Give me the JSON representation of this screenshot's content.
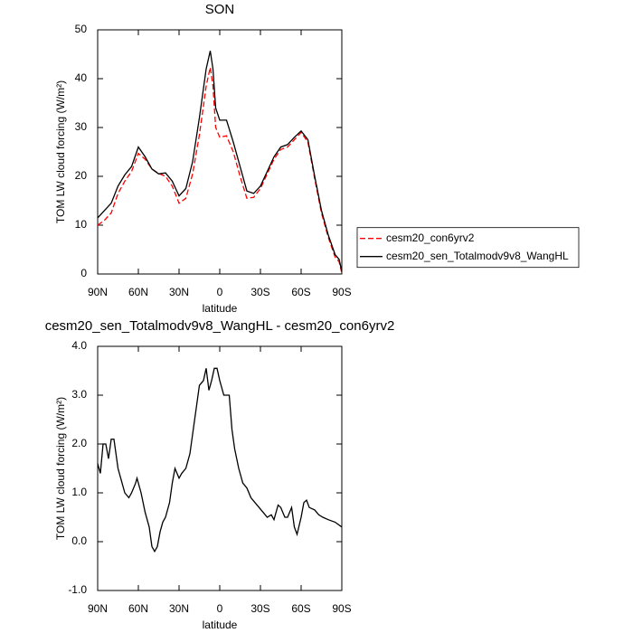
{
  "chart_data": [
    {
      "type": "line",
      "title": "SON",
      "xlabel": "latitude",
      "ylabel": "TOM LW cloud forcing (W/m²)",
      "x": [
        90,
        85,
        80,
        75,
        70,
        65,
        60,
        55,
        50,
        45,
        40,
        35,
        30,
        25,
        20,
        15,
        10,
        7,
        5,
        3,
        0,
        -5,
        -10,
        -15,
        -20,
        -25,
        -30,
        -35,
        -40,
        -45,
        -50,
        -55,
        -60,
        -65,
        -70,
        -75,
        -80,
        -85,
        -88,
        -90
      ],
      "series": [
        {
          "name": "cesm20_con6yrv2",
          "color": "#ff0000",
          "style": "dashed",
          "values": [
            10,
            11,
            12.5,
            16.5,
            19,
            21,
            24.7,
            23.5,
            21.5,
            20.6,
            20,
            18,
            14.5,
            15.5,
            20.5,
            28.5,
            38.5,
            42.3,
            38.5,
            30,
            28,
            28.3,
            25,
            20,
            15.5,
            15.7,
            17.5,
            20.5,
            23.5,
            25.5,
            26,
            27.5,
            29,
            27,
            19.5,
            12.5,
            7.5,
            3.5,
            2.5,
            0.2
          ]
        },
        {
          "name": "cesm20_sen_Totalmodv9v8_WangHL",
          "color": "#000000",
          "style": "solid",
          "values": [
            11.5,
            13,
            14.5,
            18,
            20.3,
            22,
            26,
            24,
            21.5,
            20.5,
            20.7,
            19,
            16,
            17.5,
            23,
            32,
            42,
            45.7,
            42,
            34,
            31.5,
            31.5,
            27,
            22,
            17,
            16.5,
            18,
            21,
            24,
            26,
            26.5,
            28,
            29.3,
            27.5,
            20,
            13,
            8,
            4,
            3,
            0.5
          ]
        }
      ],
      "xlim": [
        90,
        -90
      ],
      "xticks": [
        {
          "value": 90,
          "label": "90N"
        },
        {
          "value": 60,
          "label": "60N"
        },
        {
          "value": 30,
          "label": "30N"
        },
        0,
        {
          "value": -30,
          "label": "30S"
        },
        {
          "value": -60,
          "label": "60S"
        },
        {
          "value": -90,
          "label": "90S"
        }
      ],
      "ylim": [
        0,
        50
      ],
      "yticks": [
        0,
        10,
        20,
        30,
        40,
        50
      ],
      "legend": "right"
    },
    {
      "type": "line",
      "title": "cesm20_sen_Totalmodv9v8_WangHL - cesm20_con6yrv2",
      "xlabel": "latitude",
      "ylabel": "TOM LW cloud forcing (W/m²)",
      "x": [
        90,
        88,
        86,
        84,
        82,
        80,
        78,
        75,
        72,
        70,
        67,
        65,
        62,
        61,
        58,
        55,
        52,
        50,
        48,
        46,
        44,
        42,
        40,
        37,
        35,
        33,
        30,
        28,
        25,
        22,
        20,
        17,
        15,
        12,
        10,
        8,
        6,
        4,
        2,
        0,
        -3,
        -5,
        -7,
        -9,
        -11,
        -14,
        -17,
        -20,
        -23,
        -26,
        -29,
        -32,
        -35,
        -38,
        -40,
        -43,
        -45,
        -48,
        -50,
        -53,
        -55,
        -57,
        -60,
        -62,
        -64,
        -66,
        -70,
        -73,
        -76,
        -80,
        -85,
        -90
      ],
      "values": [
        1.6,
        1.4,
        2.0,
        2.0,
        1.7,
        2.1,
        2.1,
        1.5,
        1.2,
        1.0,
        0.9,
        1.0,
        1.2,
        1.3,
        1.0,
        0.6,
        0.3,
        -0.1,
        -0.2,
        -0.1,
        0.2,
        0.4,
        0.5,
        0.8,
        1.2,
        1.5,
        1.3,
        1.4,
        1.5,
        1.8,
        2.2,
        2.8,
        3.2,
        3.3,
        3.55,
        3.1,
        3.3,
        3.55,
        3.55,
        3.3,
        3.0,
        3.0,
        3.0,
        2.3,
        1.9,
        1.5,
        1.2,
        1.1,
        0.9,
        0.8,
        0.7,
        0.6,
        0.5,
        0.55,
        0.45,
        0.75,
        0.7,
        0.5,
        0.5,
        0.7,
        0.3,
        0.15,
        0.5,
        0.8,
        0.85,
        0.7,
        0.65,
        0.55,
        0.5,
        0.45,
        0.4,
        0.3
      ],
      "color": "#000000",
      "xlim": [
        90,
        -90
      ],
      "xticks": [
        {
          "value": 90,
          "label": "90N"
        },
        {
          "value": 60,
          "label": "60N"
        },
        {
          "value": 30,
          "label": "30N"
        },
        0,
        {
          "value": -30,
          "label": "30S"
        },
        {
          "value": -60,
          "label": "60S"
        },
        {
          "value": -90,
          "label": "90S"
        }
      ],
      "ylim": [
        -1,
        4
      ],
      "yticks": [
        {
          "value": -1,
          "label": "-1.0"
        },
        {
          "value": 0,
          "label": "0.0"
        },
        {
          "value": 1,
          "label": "1.0"
        },
        {
          "value": 2,
          "label": "2.0"
        },
        {
          "value": 3,
          "label": "3.0"
        },
        {
          "value": 4,
          "label": "4.0"
        }
      ]
    }
  ]
}
